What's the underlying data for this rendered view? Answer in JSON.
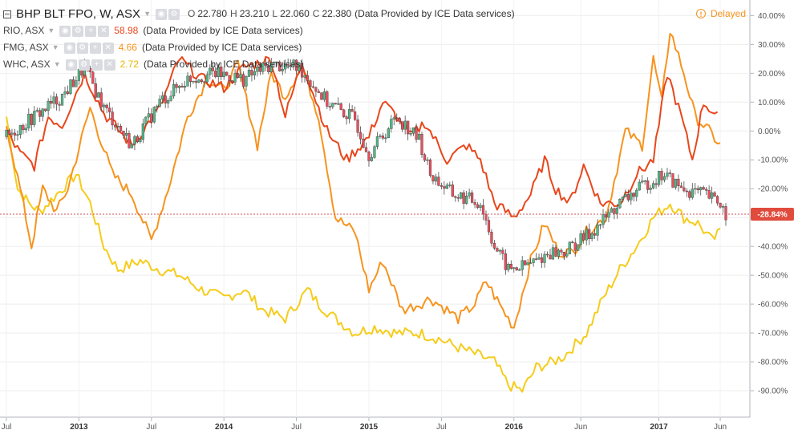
{
  "legend": {
    "main": {
      "title": "BHP BLT FPO, W, ASX",
      "ohlc": [
        {
          "k": "O",
          "v": "22.780"
        },
        {
          "k": "H",
          "v": "23.210"
        },
        {
          "k": "L",
          "v": "22.060"
        },
        {
          "k": "C",
          "v": "22.380"
        }
      ],
      "provider": "(Data Provided by ICE Data services)"
    },
    "compare": [
      {
        "symbol": "RIO, ASX",
        "value": "58.98",
        "provider": "(Data Provided by ICE Data services)",
        "color": "#e8471c"
      },
      {
        "symbol": "FMG, ASX",
        "value": "4.66",
        "provider": "(Data Provided by ICE Data services)",
        "color": "#f7931e"
      },
      {
        "symbol": "WHC, ASX",
        "value": "2.72",
        "provider": "(Data Provided by ICE Data services)",
        "color": "#f5cc1b"
      }
    ]
  },
  "status": {
    "label": "Delayed",
    "icon": "exclamation-icon",
    "color": "#f7931e"
  },
  "chart_data": {
    "type": "line",
    "ylim": [
      -95,
      44
    ],
    "y_ticks": [
      "40.00%",
      "30.00%",
      "20.00%",
      "10.00%",
      "0.00%",
      "-10.00%",
      "-20.00%",
      "-30.00%",
      "-40.00%",
      "-50.00%",
      "-60.00%",
      "-70.00%",
      "-80.00%",
      "-90.00%"
    ],
    "x_ticks": [
      {
        "label": "Jul",
        "t": 0,
        "bold": false
      },
      {
        "label": "2013",
        "t": 26,
        "bold": true
      },
      {
        "label": "Jul",
        "t": 52,
        "bold": false
      },
      {
        "label": "2014",
        "t": 78,
        "bold": true
      },
      {
        "label": "Jul",
        "t": 104,
        "bold": false
      },
      {
        "label": "2015",
        "t": 130,
        "bold": true
      },
      {
        "label": "Jul",
        "t": 156,
        "bold": false
      },
      {
        "label": "2016",
        "t": 182,
        "bold": true
      },
      {
        "label": "Jun",
        "t": 206,
        "bold": false
      },
      {
        "label": "2017",
        "t": 234,
        "bold": true
      },
      {
        "label": "Jun",
        "t": 256,
        "bold": false
      }
    ],
    "current_value": "-28.84%",
    "current_y": -28.84,
    "series": [
      {
        "name": "BHP BLT FPO",
        "style": "candles",
        "color_up": "#53b987",
        "color_down": "#eb4d5c",
        "points": [
          [
            0,
            -2
          ],
          [
            10,
            5
          ],
          [
            20,
            12
          ],
          [
            28,
            22
          ],
          [
            35,
            8
          ],
          [
            45,
            -5
          ],
          [
            55,
            10
          ],
          [
            65,
            18
          ],
          [
            75,
            20
          ],
          [
            85,
            18
          ],
          [
            95,
            23
          ],
          [
            105,
            22
          ],
          [
            115,
            10
          ],
          [
            125,
            4
          ],
          [
            130,
            -8
          ],
          [
            140,
            5
          ],
          [
            148,
            -3
          ],
          [
            152,
            -15
          ],
          [
            160,
            -22
          ],
          [
            170,
            -25
          ],
          [
            175,
            -40
          ],
          [
            180,
            -48
          ],
          [
            185,
            -47
          ],
          [
            190,
            -45
          ],
          [
            195,
            -42
          ],
          [
            200,
            -42
          ],
          [
            210,
            -35
          ],
          [
            220,
            -25
          ],
          [
            230,
            -18
          ],
          [
            236,
            -15
          ],
          [
            242,
            -20
          ],
          [
            250,
            -22
          ],
          [
            256,
            -25
          ],
          [
            258,
            -28.84
          ]
        ]
      },
      {
        "name": "RIO, ASX",
        "color": "#e8471c",
        "points": [
          [
            0,
            0
          ],
          [
            5,
            -8
          ],
          [
            10,
            -12
          ],
          [
            15,
            5
          ],
          [
            20,
            2
          ],
          [
            28,
            20
          ],
          [
            35,
            6
          ],
          [
            45,
            -5
          ],
          [
            55,
            8
          ],
          [
            62,
            25
          ],
          [
            70,
            18
          ],
          [
            78,
            15
          ],
          [
            85,
            22
          ],
          [
            95,
            25
          ],
          [
            100,
            5
          ],
          [
            106,
            24
          ],
          [
            115,
            0
          ],
          [
            122,
            -10
          ],
          [
            130,
            -2
          ],
          [
            135,
            10
          ],
          [
            140,
            5
          ],
          [
            145,
            -2
          ],
          [
            150,
            3
          ],
          [
            158,
            -10
          ],
          [
            165,
            -5
          ],
          [
            170,
            -10
          ],
          [
            175,
            -25
          ],
          [
            182,
            -30
          ],
          [
            188,
            -22
          ],
          [
            193,
            -10
          ],
          [
            197,
            -20
          ],
          [
            202,
            -25
          ],
          [
            207,
            -12
          ],
          [
            213,
            -25
          ],
          [
            220,
            -25
          ],
          [
            226,
            -15
          ],
          [
            232,
            -10
          ],
          [
            237,
            20
          ],
          [
            242,
            5
          ],
          [
            246,
            -10
          ],
          [
            250,
            10
          ],
          [
            255,
            5
          ]
        ]
      },
      {
        "name": "FMG, ASX",
        "color": "#f7931e",
        "points": [
          [
            0,
            2
          ],
          [
            6,
            -25
          ],
          [
            9,
            -40
          ],
          [
            13,
            -20
          ],
          [
            18,
            -28
          ],
          [
            22,
            -20
          ],
          [
            30,
            8
          ],
          [
            38,
            -15
          ],
          [
            45,
            -22
          ],
          [
            52,
            -38
          ],
          [
            58,
            -20
          ],
          [
            65,
            5
          ],
          [
            72,
            18
          ],
          [
            78,
            14
          ],
          [
            83,
            23
          ],
          [
            90,
            -5
          ],
          [
            95,
            20
          ],
          [
            100,
            12
          ],
          [
            106,
            23
          ],
          [
            112,
            5
          ],
          [
            118,
            -30
          ],
          [
            125,
            -35
          ],
          [
            130,
            -55
          ],
          [
            135,
            -45
          ],
          [
            142,
            -62
          ],
          [
            148,
            -60
          ],
          [
            152,
            -58
          ],
          [
            158,
            -62
          ],
          [
            162,
            -65
          ],
          [
            168,
            -60
          ],
          [
            172,
            -52
          ],
          [
            178,
            -62
          ],
          [
            182,
            -68
          ],
          [
            188,
            -45
          ],
          [
            193,
            -32
          ],
          [
            198,
            -42
          ],
          [
            203,
            -42
          ],
          [
            208,
            -35
          ],
          [
            215,
            -30
          ],
          [
            222,
            0
          ],
          [
            228,
            -5
          ],
          [
            232,
            25
          ],
          [
            235,
            10
          ],
          [
            238,
            35
          ],
          [
            243,
            20
          ],
          [
            247,
            5
          ],
          [
            252,
            0
          ],
          [
            256,
            -5
          ]
        ]
      },
      {
        "name": "WHC, ASX",
        "color": "#f5cc1b",
        "points": [
          [
            0,
            5
          ],
          [
            4,
            -20
          ],
          [
            8,
            -25
          ],
          [
            12,
            -28
          ],
          [
            18,
            -22
          ],
          [
            25,
            -15
          ],
          [
            30,
            -25
          ],
          [
            35,
            -40
          ],
          [
            40,
            -48
          ],
          [
            48,
            -45
          ],
          [
            55,
            -48
          ],
          [
            62,
            -50
          ],
          [
            70,
            -55
          ],
          [
            78,
            -58
          ],
          [
            85,
            -55
          ],
          [
            92,
            -62
          ],
          [
            100,
            -65
          ],
          [
            108,
            -55
          ],
          [
            112,
            -60
          ],
          [
            118,
            -65
          ],
          [
            125,
            -70
          ],
          [
            132,
            -68
          ],
          [
            140,
            -70
          ],
          [
            148,
            -70
          ],
          [
            155,
            -72
          ],
          [
            162,
            -75
          ],
          [
            170,
            -78
          ],
          [
            175,
            -80
          ],
          [
            180,
            -88
          ],
          [
            185,
            -90
          ],
          [
            190,
            -82
          ],
          [
            196,
            -80
          ],
          [
            200,
            -78
          ],
          [
            208,
            -70
          ],
          [
            214,
            -58
          ],
          [
            220,
            -48
          ],
          [
            226,
            -40
          ],
          [
            232,
            -30
          ],
          [
            238,
            -25
          ],
          [
            243,
            -30
          ],
          [
            248,
            -32
          ],
          [
            253,
            -38
          ],
          [
            256,
            -35
          ]
        ]
      }
    ]
  }
}
